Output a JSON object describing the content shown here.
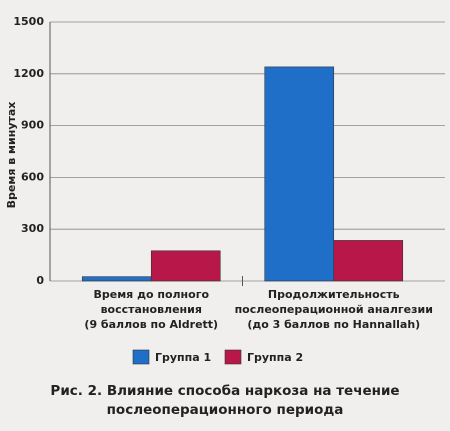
{
  "chart_data": {
    "type": "bar",
    "title": "Рис. 2. Влияние способа наркоза на течение послеоперационного периода",
    "y_label": "Время в минутах",
    "categories": [
      [
        "Время до полного",
        "восстановления",
        "(9 баллов по Aldrett)"
      ],
      [
        "Продолжительность",
        "послеоперационной аналгезии",
        "(до 3 баллов по Hannallah)"
      ]
    ],
    "series": [
      {
        "name": "Группа 1",
        "color": "#1f6fc8",
        "values": [
          25,
          1240
        ]
      },
      {
        "name": "Группа 2",
        "color": "#b8174a",
        "values": [
          175,
          235
        ]
      }
    ],
    "ylim": [
      0,
      1500
    ],
    "yticks": [
      0,
      300,
      600,
      900,
      1200,
      1500
    ],
    "grid": true
  }
}
